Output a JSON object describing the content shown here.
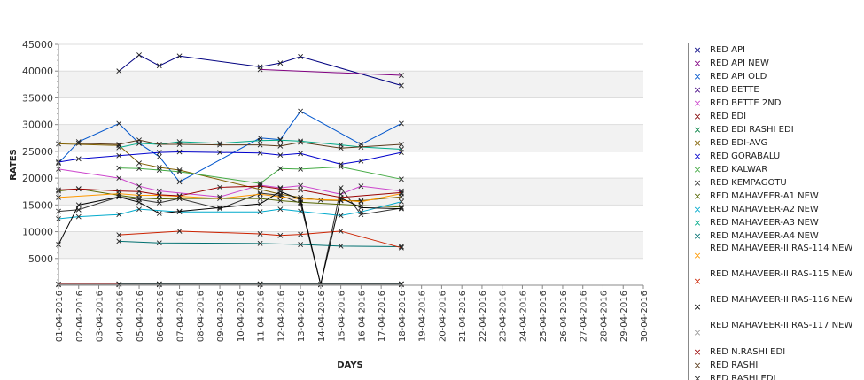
{
  "chart_data": {
    "type": "line",
    "xlabel": "DAYS",
    "ylabel": "RATES",
    "ylim": [
      0,
      45000
    ],
    "yticks": [
      5000,
      10000,
      15000,
      20000,
      25000,
      30000,
      35000,
      40000,
      45000
    ],
    "grid": "alternating horizontal bands",
    "legend": "right",
    "categories": [
      "01-04-2016",
      "02-04-2016",
      "03-04-2016",
      "04-04-2016",
      "05-04-2016",
      "06-04-2016",
      "07-04-2016",
      "08-04-2016",
      "09-04-2016",
      "10-04-2016",
      "11-04-2016",
      "12-04-2016",
      "13-04-2016",
      "14-04-2016",
      "15-04-2016",
      "16-04-2016",
      "17-04-2016",
      "18-04-2016",
      "19-04-2016",
      "20-04-2016",
      "21-04-2016",
      "22-04-2016",
      "23-04-2016",
      "24-04-2016",
      "25-04-2016",
      "26-04-2016",
      "27-04-2016",
      "28-04-2016",
      "29-04-2016",
      "30-04-2016"
    ],
    "series": [
      {
        "name": "RED API",
        "color": "#000080",
        "x": [
          "04-04-2016",
          "05-04-2016",
          "06-04-2016",
          "07-04-2016",
          "11-04-2016",
          "12-04-2016",
          "13-04-2016",
          "18-04-2016"
        ],
        "values": [
          40000,
          43000,
          41000,
          42800,
          40800,
          41500,
          42700,
          37300
        ]
      },
      {
        "name": "RED API NEW",
        "color": "#800080",
        "x": [
          "11-04-2016",
          "18-04-2016"
        ],
        "values": [
          40300,
          39200
        ]
      },
      {
        "name": "RED API OLD",
        "color": "#0055cc",
        "x": [
          "01-04-2016",
          "02-04-2016",
          "04-04-2016",
          "05-04-2016",
          "06-04-2016",
          "07-04-2016",
          "11-04-2016",
          "12-04-2016",
          "13-04-2016",
          "16-04-2016",
          "18-04-2016"
        ],
        "values": [
          22800,
          26800,
          30200,
          26500,
          24000,
          19300,
          27500,
          27200,
          32500,
          26300,
          30200
        ]
      },
      {
        "name": "RED BETTE",
        "color": "#400080",
        "x": [
          "04-04-2016",
          "06-04-2016",
          "11-04-2016",
          "18-04-2016"
        ],
        "values": [
          260,
          260,
          260,
          260
        ]
      },
      {
        "name": "RED BETTE 2ND",
        "color": "#cc44cc",
        "x": [
          "01-04-2016",
          "04-04-2016",
          "05-04-2016",
          "06-04-2016",
          "09-04-2016",
          "11-04-2016",
          "12-04-2016",
          "13-04-2016",
          "15-04-2016",
          "16-04-2016",
          "18-04-2016"
        ],
        "values": [
          21700,
          20000,
          18500,
          17600,
          16500,
          18700,
          18200,
          18600,
          17000,
          18500,
          17600
        ]
      },
      {
        "name": "RED EDI",
        "color": "#800000",
        "x": [
          "01-04-2016",
          "04-04-2016",
          "06-04-2016",
          "11-04-2016",
          "18-04-2016"
        ],
        "values": [
          200,
          200,
          200,
          200,
          200
        ]
      },
      {
        "name": "RED EDI RASHI EDI",
        "color": "#008040",
        "x": [
          "04-04-2016",
          "06-04-2016",
          "11-04-2016",
          "18-04-2016"
        ],
        "values": [
          180,
          180,
          180,
          180
        ]
      },
      {
        "name": "RED EDI-AVG",
        "color": "#806000",
        "x": [
          "01-04-2016",
          "04-04-2016",
          "05-04-2016",
          "06-04-2016",
          "07-04-2016",
          "12-04-2016",
          "13-04-2016",
          "14-04-2016",
          "15-04-2016",
          "16-04-2016",
          "18-04-2016"
        ],
        "values": [
          26400,
          26100,
          22800,
          22000,
          21500,
          17000,
          16400,
          15900,
          15800,
          15800,
          16500
        ]
      },
      {
        "name": "RED GORABALU",
        "color": "#0000cc",
        "x": [
          "01-04-2016",
          "02-04-2016",
          "04-04-2016",
          "06-04-2016",
          "07-04-2016",
          "09-04-2016",
          "11-04-2016",
          "12-04-2016",
          "13-04-2016",
          "15-04-2016",
          "16-04-2016",
          "18-04-2016"
        ],
        "values": [
          23000,
          23600,
          24200,
          24800,
          24900,
          24800,
          24700,
          24300,
          24600,
          22600,
          23200,
          24800
        ]
      },
      {
        "name": "RED KALWAR",
        "color": "#44aa44",
        "x": [
          "04-04-2016",
          "05-04-2016",
          "06-04-2016",
          "07-04-2016",
          "11-04-2016",
          "12-04-2016",
          "13-04-2016",
          "15-04-2016",
          "18-04-2016"
        ],
        "values": [
          21900,
          21800,
          21500,
          21200,
          19000,
          21800,
          21700,
          22100,
          19800
        ]
      },
      {
        "name": "RED KEMPAGOTU",
        "color": "#333333",
        "x": [
          "01-04-2016",
          "02-04-2016",
          "04-04-2016",
          "05-04-2016",
          "06-04-2016",
          "07-04-2016",
          "09-04-2016",
          "11-04-2016",
          "12-04-2016",
          "13-04-2016",
          "14-04-2016",
          "15-04-2016",
          "16-04-2016",
          "18-04-2016"
        ],
        "values": [
          13800,
          14100,
          16500,
          16000,
          15400,
          16200,
          14300,
          17200,
          16800,
          15300,
          100,
          18200,
          13200,
          14400
        ]
      },
      {
        "name": "RED MAHAVEER-A1 NEW",
        "color": "#556600",
        "x": [
          "01-04-2016",
          "02-04-2016",
          "04-04-2016",
          "05-04-2016",
          "06-04-2016",
          "07-04-2016",
          "11-04-2016",
          "12-04-2016",
          "13-04-2016",
          "16-04-2016",
          "18-04-2016"
        ],
        "values": [
          17600,
          18000,
          16800,
          16300,
          16100,
          16200,
          16200,
          15800,
          15500,
          14900,
          14600
        ]
      },
      {
        "name": "RED MAHAVEER-A2 NEW",
        "color": "#00aacc",
        "x": [
          "01-04-2016",
          "02-04-2016",
          "04-04-2016",
          "05-04-2016",
          "07-04-2016",
          "11-04-2016",
          "12-04-2016",
          "13-04-2016",
          "15-04-2016",
          "16-04-2016",
          "18-04-2016"
        ],
        "values": [
          12400,
          12800,
          13200,
          14200,
          13700,
          13700,
          14200,
          13800,
          13000,
          13700,
          15600
        ]
      },
      {
        "name": "RED MAHAVEER-A3 NEW",
        "color": "#00aa88",
        "x": [
          "04-04-2016",
          "05-04-2016",
          "06-04-2016",
          "07-04-2016",
          "09-04-2016",
          "11-04-2016",
          "12-04-2016",
          "13-04-2016",
          "15-04-2016",
          "16-04-2016",
          "18-04-2016"
        ],
        "values": [
          25700,
          26500,
          26300,
          26800,
          26500,
          27000,
          27100,
          26900,
          26200,
          25800,
          25400
        ]
      },
      {
        "name": "RED MAHAVEER-A4 NEW",
        "color": "#007070",
        "x": [
          "04-04-2016",
          "06-04-2016",
          "11-04-2016",
          "13-04-2016",
          "15-04-2016",
          "18-04-2016"
        ],
        "values": [
          8200,
          7900,
          7800,
          7600,
          7300,
          7200
        ]
      },
      {
        "name": "RED MAHAVEER-II RAS-114 NEW",
        "color": "#ff9900",
        "x": [
          "01-04-2016",
          "04-04-2016",
          "05-04-2016",
          "06-04-2016",
          "07-04-2016",
          "09-04-2016",
          "11-04-2016",
          "12-04-2016",
          "13-04-2016",
          "15-04-2016",
          "16-04-2016",
          "18-04-2016"
        ],
        "values": [
          16400,
          17100,
          16800,
          16800,
          16600,
          16200,
          17000,
          16500,
          16100,
          15900,
          15600,
          17100
        ]
      },
      {
        "name": "RED MAHAVEER-II RAS-115 NEW",
        "color": "#cc2200",
        "x": [
          "04-04-2016",
          "07-04-2016",
          "11-04-2016",
          "12-04-2016",
          "13-04-2016",
          "15-04-2016",
          "18-04-2016"
        ],
        "values": [
          9400,
          10100,
          9600,
          9300,
          9500,
          10100,
          7000
        ]
      },
      {
        "name": "RED MAHAVEER-II RAS-116 NEW",
        "color": "#000000",
        "x": [
          "01-04-2016",
          "02-04-2016",
          "04-04-2016",
          "05-04-2016",
          "06-04-2016",
          "07-04-2016",
          "09-04-2016",
          "11-04-2016",
          "12-04-2016",
          "13-04-2016",
          "14-04-2016",
          "15-04-2016",
          "16-04-2016",
          "18-04-2016"
        ],
        "values": [
          7600,
          15000,
          16500,
          15500,
          13400,
          13800,
          14500,
          15200,
          17500,
          16000,
          150,
          16300,
          14500,
          14300
        ]
      },
      {
        "name": "RED MAHAVEER-II RAS-117 NEW",
        "color": "#999999",
        "x": [
          "01-04-2016",
          "04-04-2016",
          "06-04-2016",
          "11-04-2016",
          "18-04-2016"
        ],
        "values": [
          120,
          120,
          120,
          120,
          120
        ]
      },
      {
        "name": "RED N.RASHI EDI",
        "color": "#990000",
        "x": [
          "01-04-2016",
          "02-04-2016",
          "04-04-2016",
          "05-04-2016",
          "06-04-2016",
          "07-04-2016",
          "09-04-2016",
          "11-04-2016",
          "12-04-2016",
          "13-04-2016",
          "15-04-2016",
          "18-04-2016"
        ],
        "values": [
          17800,
          18000,
          17600,
          17500,
          16900,
          16700,
          18300,
          18500,
          18000,
          17800,
          16400,
          17300
        ]
      },
      {
        "name": "RED RASHI",
        "color": "#5a3a1a",
        "x": [
          "02-04-2016",
          "04-04-2016",
          "05-04-2016",
          "06-04-2016",
          "07-04-2016",
          "09-04-2016",
          "11-04-2016",
          "12-04-2016",
          "13-04-2016",
          "15-04-2016",
          "18-04-2016"
        ],
        "values": [
          26500,
          26300,
          27100,
          26300,
          26300,
          26200,
          26200,
          26000,
          26700,
          25600,
          26300
        ]
      }
    ]
  },
  "legend_items": [
    {
      "label": "RED API",
      "marker": "×",
      "color": "#000080",
      "lines": 1
    },
    {
      "label": "RED API NEW",
      "marker": "×",
      "color": "#800080",
      "lines": 1
    },
    {
      "label": "RED API OLD",
      "marker": "×",
      "color": "#0055cc",
      "lines": 1
    },
    {
      "label": "RED BETTE",
      "marker": "×",
      "color": "#400080",
      "lines": 1
    },
    {
      "label": "RED BETTE 2ND",
      "marker": "×",
      "color": "#cc44cc",
      "lines": 1
    },
    {
      "label": "RED EDI",
      "marker": "×",
      "color": "#800000",
      "lines": 1
    },
    {
      "label": "RED EDI RASHI EDI",
      "marker": "×",
      "color": "#008040",
      "lines": 1
    },
    {
      "label": "RED EDI-AVG",
      "marker": "×",
      "color": "#806000",
      "lines": 1
    },
    {
      "label": "RED GORABALU",
      "marker": "×",
      "color": "#0000cc",
      "lines": 1
    },
    {
      "label": "RED KALWAR",
      "marker": "×",
      "color": "#44aa44",
      "lines": 1
    },
    {
      "label": "RED KEMPAGOTU",
      "marker": "×",
      "color": "#333333",
      "lines": 1
    },
    {
      "label": "RED MAHAVEER-A1 NEW",
      "marker": "×",
      "color": "#556600",
      "lines": 1
    },
    {
      "label": "RED MAHAVEER-A2 NEW",
      "marker": "×",
      "color": "#00aacc",
      "lines": 1
    },
    {
      "label": "RED MAHAVEER-A3 NEW",
      "marker": "×",
      "color": "#00aa88",
      "lines": 1
    },
    {
      "label": "RED MAHAVEER-A4 NEW",
      "marker": "×",
      "color": "#007070",
      "lines": 1
    },
    {
      "label": "RED MAHAVEER-II RAS-114 NEW",
      "marker": "×",
      "color": "#ff9900",
      "lines": 2
    },
    {
      "label": "RED MAHAVEER-II RAS-115 NEW",
      "marker": "×",
      "color": "#cc2200",
      "lines": 2
    },
    {
      "label": "RED MAHAVEER-II RAS-116 NEW",
      "marker": "×",
      "color": "#000000",
      "lines": 2
    },
    {
      "label": "RED MAHAVEER-II RAS-117 NEW",
      "marker": "×",
      "color": "#999999",
      "lines": 2
    },
    {
      "label": "RED N.RASHI EDI",
      "marker": "×",
      "color": "#990000",
      "lines": 1
    },
    {
      "label": "RED RASHI",
      "marker": "×",
      "color": "#5a3a1a",
      "lines": 1
    },
    {
      "label": "RED RASHI EDI",
      "marker": "×",
      "color": "#222222",
      "lines": 1
    }
  ]
}
